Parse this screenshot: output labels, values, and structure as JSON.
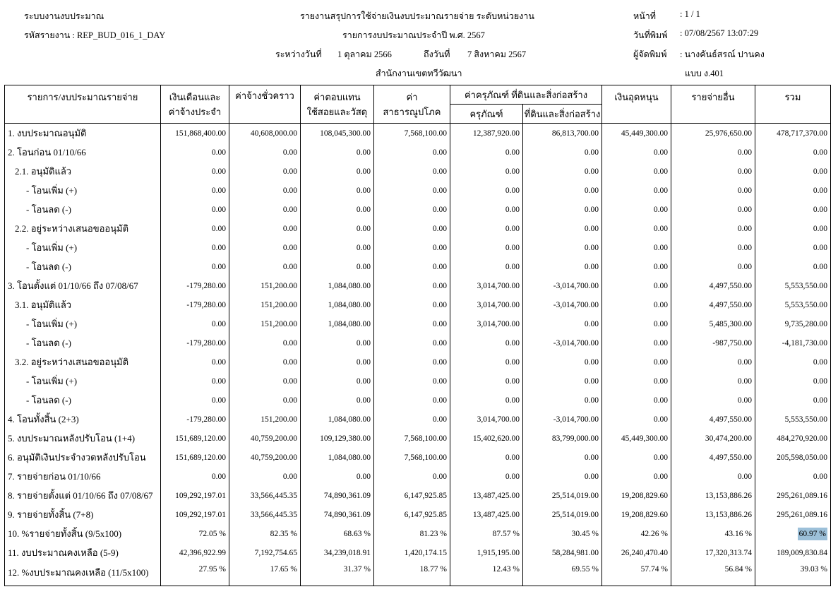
{
  "header": {
    "system": "ระบบงานงบประมาณ",
    "report_code": "รหัสรายงาน : REP_BUD_016_1_DAY",
    "title": "รายงานสรุปการใช้จ่ายเงินงบประมาณรายจ่าย ระดับหน่วยงาน",
    "subtitle": "รายการงบประมาณประจำปี พ.ศ. 2567",
    "period_from_label": "ระหว่างวันที่",
    "period_from": "1 ตุลาคม 2566",
    "period_to_label": "ถึงวันที่",
    "period_to": "7 สิงหาคม 2567",
    "office": "สำนักงานเขตทวีวัฒนา",
    "page_label": "หน้าที่",
    "page_value": ": 1 / 1",
    "print_date_label": "วันที่พิมพ์",
    "print_date_value": ": 07/08/2567 13:07:29",
    "printer_label": "ผู้จัดพิมพ์",
    "printer_value": ": นางคันธ์สรณ์ ปานคง",
    "form": "แบบ ง.401"
  },
  "columns": {
    "item": "รายการ/งบประมาณรายจ่าย",
    "salary_1": "เงินเดือนและ",
    "salary_2": "ค่าจ้างประจำ",
    "temp_wage": "ค่าจ้างชั่วคราว",
    "compensation_1": "ค่าตอบแทน",
    "compensation_2": "ใช้สอยและวัสดุ",
    "utilities_1": "ค่า",
    "utilities_2": "สาธารณูปโภค",
    "capital": "ค่าครุภัณฑ์ ที่ดินและสิ่งก่อสร้าง",
    "equipment": "ครุภัณฑ์",
    "land": "ที่ดินและสิ่งก่อสร้าง",
    "subsidy": "เงินอุดหนุน",
    "other": "รายจ่ายอื่น",
    "total": "รวม"
  },
  "highlight_color": "#9cc0d9",
  "rows": [
    {
      "label": "1. งบประมาณอนุมัติ",
      "indent": 0,
      "values": [
        "151,868,400.00",
        "40,608,000.00",
        "108,045,300.00",
        "7,568,100.00",
        "12,387,920.00",
        "86,813,700.00",
        "45,449,300.00",
        "25,976,650.00",
        "478,717,370.00"
      ]
    },
    {
      "label": "2. โอนก่อน 01/10/66",
      "indent": 0,
      "values": [
        "0.00",
        "0.00",
        "0.00",
        "0.00",
        "0.00",
        "0.00",
        "0.00",
        "0.00",
        "0.00"
      ]
    },
    {
      "label": "2.1. อนุมัติแล้ว",
      "indent": 1,
      "values": [
        "0.00",
        "0.00",
        "0.00",
        "0.00",
        "0.00",
        "0.00",
        "0.00",
        "0.00",
        "0.00"
      ]
    },
    {
      "label": "- โอนเพิ่ม (+)",
      "indent": 2,
      "values": [
        "0.00",
        "0.00",
        "0.00",
        "0.00",
        "0.00",
        "0.00",
        "0.00",
        "0.00",
        "0.00"
      ]
    },
    {
      "label": "- โอนลด (-)",
      "indent": 2,
      "values": [
        "0.00",
        "0.00",
        "0.00",
        "0.00",
        "0.00",
        "0.00",
        "0.00",
        "0.00",
        "0.00"
      ]
    },
    {
      "label": "2.2. อยู่ระหว่างเสนอขออนุมัติ",
      "indent": 1,
      "values": [
        "0.00",
        "0.00",
        "0.00",
        "0.00",
        "0.00",
        "0.00",
        "0.00",
        "0.00",
        "0.00"
      ]
    },
    {
      "label": "- โอนเพิ่ม (+)",
      "indent": 2,
      "values": [
        "0.00",
        "0.00",
        "0.00",
        "0.00",
        "0.00",
        "0.00",
        "0.00",
        "0.00",
        "0.00"
      ]
    },
    {
      "label": "- โอนลด (-)",
      "indent": 2,
      "values": [
        "0.00",
        "0.00",
        "0.00",
        "0.00",
        "0.00",
        "0.00",
        "0.00",
        "0.00",
        "0.00"
      ]
    },
    {
      "label": "3. โอนตั้งแต่ 01/10/66 ถึง 07/08/67",
      "indent": 0,
      "values": [
        "-179,280.00",
        "151,200.00",
        "1,084,080.00",
        "0.00",
        "3,014,700.00",
        "-3,014,700.00",
        "0.00",
        "4,497,550.00",
        "5,553,550.00"
      ]
    },
    {
      "label": "3.1. อนุมัติแล้ว",
      "indent": 1,
      "values": [
        "-179,280.00",
        "151,200.00",
        "1,084,080.00",
        "0.00",
        "3,014,700.00",
        "-3,014,700.00",
        "0.00",
        "4,497,550.00",
        "5,553,550.00"
      ]
    },
    {
      "label": "- โอนเพิ่ม (+)",
      "indent": 2,
      "values": [
        "0.00",
        "151,200.00",
        "1,084,080.00",
        "0.00",
        "3,014,700.00",
        "0.00",
        "0.00",
        "5,485,300.00",
        "9,735,280.00"
      ]
    },
    {
      "label": "- โอนลด (-)",
      "indent": 2,
      "values": [
        "-179,280.00",
        "0.00",
        "0.00",
        "0.00",
        "0.00",
        "-3,014,700.00",
        "0.00",
        "-987,750.00",
        "-4,181,730.00"
      ]
    },
    {
      "label": "3.2. อยู่ระหว่างเสนอขออนุมัติ",
      "indent": 1,
      "values": [
        "0.00",
        "0.00",
        "0.00",
        "0.00",
        "0.00",
        "0.00",
        "0.00",
        "0.00",
        "0.00"
      ]
    },
    {
      "label": "- โอนเพิ่ม (+)",
      "indent": 2,
      "values": [
        "0.00",
        "0.00",
        "0.00",
        "0.00",
        "0.00",
        "0.00",
        "0.00",
        "0.00",
        "0.00"
      ]
    },
    {
      "label": "- โอนลด (-)",
      "indent": 2,
      "values": [
        "0.00",
        "0.00",
        "0.00",
        "0.00",
        "0.00",
        "0.00",
        "0.00",
        "0.00",
        "0.00"
      ]
    },
    {
      "label": "4. โอนทั้งสิ้น (2+3)",
      "indent": 0,
      "values": [
        "-179,280.00",
        "151,200.00",
        "1,084,080.00",
        "0.00",
        "3,014,700.00",
        "-3,014,700.00",
        "0.00",
        "4,497,550.00",
        "5,553,550.00"
      ]
    },
    {
      "label": "5. งบประมาณหลังปรับโอน (1+4)",
      "indent": 0,
      "values": [
        "151,689,120.00",
        "40,759,200.00",
        "109,129,380.00",
        "7,568,100.00",
        "15,402,620.00",
        "83,799,000.00",
        "45,449,300.00",
        "30,474,200.00",
        "484,270,920.00"
      ]
    },
    {
      "label": "6. อนุมัติเงินประจำงวดหลังปรับโอน",
      "indent": 0,
      "values": [
        "151,689,120.00",
        "40,759,200.00",
        "1,084,080.00",
        "7,568,100.00",
        "0.00",
        "0.00",
        "0.00",
        "4,497,550.00",
        "205,598,050.00"
      ]
    },
    {
      "label": "7. รายจ่ายก่อน 01/10/66",
      "indent": 0,
      "values": [
        "0.00",
        "0.00",
        "0.00",
        "0.00",
        "0.00",
        "0.00",
        "0.00",
        "0.00",
        "0.00"
      ]
    },
    {
      "label": "8. รายจ่ายตั้งแต่ 01/10/66 ถึง 07/08/67",
      "indent": 0,
      "values": [
        "109,292,197.01",
        "33,566,445.35",
        "74,890,361.09",
        "6,147,925.85",
        "13,487,425.00",
        "25,514,019.00",
        "19,208,829.60",
        "13,153,886.26",
        "295,261,089.16"
      ]
    },
    {
      "label": "9. รายจ่ายทั้งสิ้น (7+8)",
      "indent": 0,
      "values": [
        "109,292,197.01",
        "33,566,445.35",
        "74,890,361.09",
        "6,147,925.85",
        "13,487,425.00",
        "25,514,019.00",
        "19,208,829.60",
        "13,153,886.26",
        "295,261,089.16"
      ]
    },
    {
      "label": "10. %รายจ่ายทั้งสิ้น (9/5x100)",
      "indent": 0,
      "highlight_last": true,
      "values": [
        "72.05 %",
        "82.35 %",
        "68.63 %",
        "81.23 %",
        "87.57 %",
        "30.45 %",
        "42.26 %",
        "43.16 %",
        "60.97 %"
      ]
    },
    {
      "label": "11. งบประมาณคงเหลือ (5-9)",
      "indent": 0,
      "values": [
        "42,396,922.99",
        "7,192,754.65",
        "34,239,018.91",
        "1,420,174.15",
        "1,915,195.00",
        "58,284,981.00",
        "26,240,470.40",
        "17,320,313.74",
        "189,009,830.84"
      ]
    },
    {
      "label": "12. %งบประมาณคงเหลือ (11/5x100)",
      "indent": 0,
      "values": [
        "27.95 %",
        "17.65 %",
        "31.37 %",
        "18.77 %",
        "12.43 %",
        "69.55 %",
        "57.74 %",
        "56.84 %",
        "39.03 %"
      ]
    }
  ]
}
